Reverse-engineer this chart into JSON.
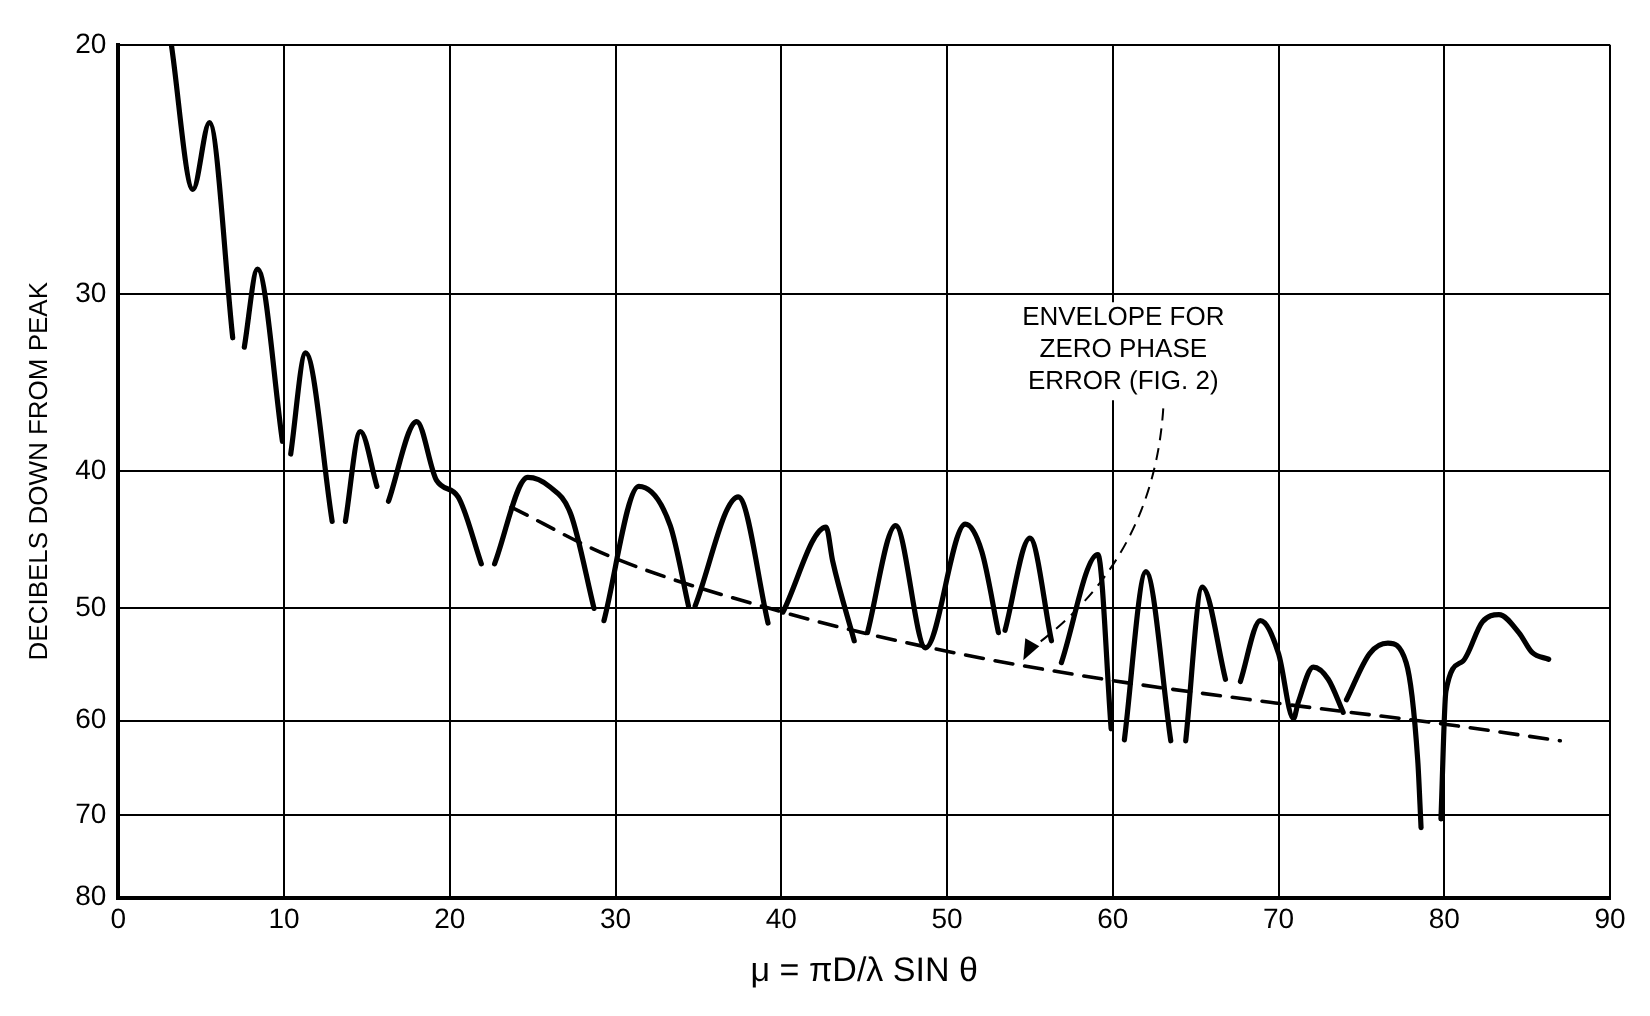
{
  "chart_data": {
    "type": "line",
    "xlabel": "μ = πD/λ SIN θ",
    "ylabel": "DECIBELS DOWN FROM PEAK",
    "annotations": [
      {
        "text": "ENVELOPE FOR\nZERO PHASE\nERROR (FIG. 2)",
        "x": 54.6,
        "y": 54.4
      }
    ],
    "series": [
      {
        "color": "#000000",
        "line_style": "solid",
        "x": [
          3.2,
          4.5,
          5.5,
          6.9,
          7.25,
          7.6,
          8.4,
          9.9,
          10.15,
          10.4,
          11.3,
          12.9,
          13.3,
          13.7,
          14.6,
          15.6,
          15.95,
          16.3,
          18.0,
          19.2,
          20.5,
          21.9,
          22.3,
          22.7,
          24.7,
          26.0,
          27.3,
          28.7,
          29.0,
          29.3,
          31.4,
          33.3,
          34.4,
          34.6,
          34.8,
          37.4,
          39.2,
          39.65,
          40.1,
          42.7,
          43.1,
          44.4,
          44.8,
          45.2,
          46.9,
          48.7,
          51.1,
          52.1,
          53.1,
          53.3,
          53.5,
          55.0,
          56.3,
          56.6,
          56.9,
          59.1,
          59.9,
          60.3,
          60.7,
          62.0,
          63.5,
          63.9,
          64.4,
          65.4,
          66.8,
          67.25,
          67.7,
          68.9,
          70.0,
          70.9,
          71.2,
          72.1,
          73.0,
          73.9,
          74.0,
          74.1,
          75.5,
          76.6,
          77.7,
          78.4,
          78.6,
          79.2,
          79.8,
          80.1,
          81.1,
          82.3,
          83.3,
          84.5,
          85.3,
          86.3
        ],
        "values": [
          20,
          25.3,
          22.7,
          32.2,
          null,
          32.7,
          28.8,
          38.1,
          null,
          38.9,
          33.0,
          43.4,
          null,
          43.4,
          37.5,
          41.0,
          null,
          42.0,
          36.9,
          40.6,
          41.7,
          46.5,
          null,
          46.5,
          40.4,
          41.0,
          42.9,
          50.0,
          null,
          51.0,
          41.0,
          43.7,
          49.8,
          null,
          49.8,
          41.7,
          51.2,
          null,
          50.3,
          43.8,
          46.3,
          52.7,
          null,
          52.0,
          43.7,
          53.3,
          43.6,
          45.6,
          52.0,
          null,
          51.8,
          44.6,
          52.7,
          null,
          54.6,
          45.8,
          60.8,
          null,
          61.9,
          47.1,
          62.0,
          null,
          62.0,
          48.3,
          56.1,
          null,
          56.3,
          51.0,
          53.8,
          59.8,
          58.2,
          55.0,
          56.1,
          59.2,
          null,
          58.0,
          53.8,
          52.9,
          54.6,
          64.0,
          71.4,
          null,
          70.4,
          57.2,
          54.5,
          51.1,
          50.5,
          52.0,
          53.7,
          54.3
        ]
      },
      {
        "color": "#000000",
        "line_style": "dashed",
        "x": [
          23.7,
          29.6,
          40.1,
          49.3,
          59.5,
          69.8,
          79.8,
          87.0
        ],
        "values": [
          42.4,
          45.9,
          50.3,
          53.4,
          56.1,
          58.3,
          60.3,
          62.0
        ]
      }
    ],
    "xlim": [
      0,
      90
    ],
    "xticks": [
      0,
      10,
      20,
      30,
      40,
      50,
      60,
      70,
      80,
      90
    ],
    "ylim": [
      80,
      20
    ],
    "yticks": [
      20,
      30,
      40,
      50,
      60,
      70,
      80
    ],
    "log": "y",
    "grid": true
  }
}
